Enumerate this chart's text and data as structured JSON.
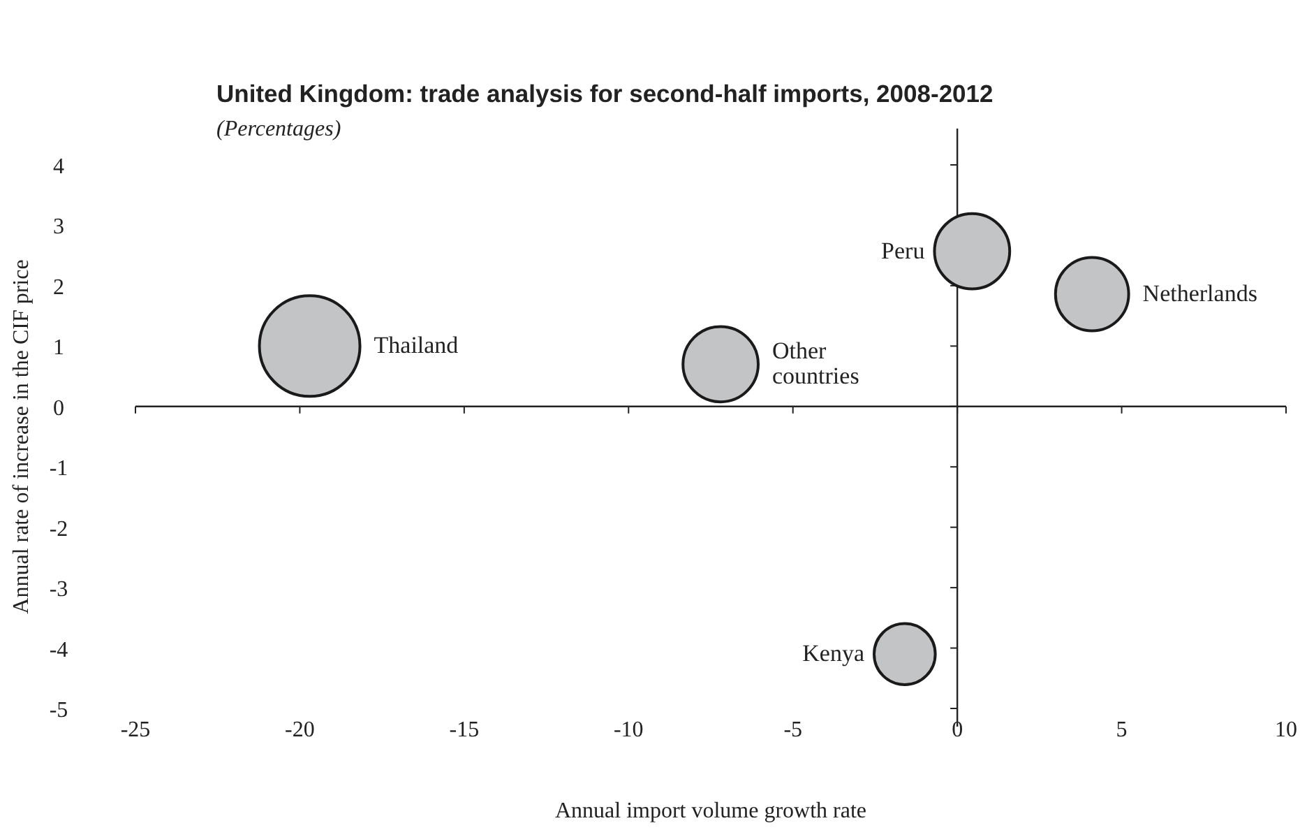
{
  "chart_data": {
    "type": "bubble",
    "title": "United Kingdom: trade analysis for second-half imports, 2008-2012",
    "subtitle": "(Percentages)",
    "xlabel": "Annual import volume growth rate",
    "ylabel": "Annual rate of increase in the CIF price",
    "xlim": [
      -25,
      10
    ],
    "xticks": [
      -25,
      -20,
      -15,
      -10,
      -5,
      0,
      5,
      10
    ],
    "ylim": [
      -5,
      4
    ],
    "yticks": [
      -5,
      -4,
      -3,
      -2,
      -1,
      0,
      1,
      2,
      3,
      4
    ],
    "series": [
      {
        "name": "Thailand",
        "color": "#c3c4c6",
        "x": [
          -19.7
        ],
        "values": [
          1.0
        ],
        "sizes": [
          1
        ]
      },
      {
        "name": "Other countries",
        "color": "#c3c4c6",
        "x": [
          -7.2
        ],
        "values": [
          0.7
        ],
        "sizes": [
          0.56
        ]
      },
      {
        "name": "Peru",
        "color": "#c3c4c6",
        "x": [
          0.45
        ],
        "values": [
          2.57
        ],
        "sizes": [
          0.56
        ]
      },
      {
        "name": "Netherlands",
        "color": "#c3c4c6",
        "x": [
          4.1
        ],
        "values": [
          1.86
        ],
        "sizes": [
          0.53
        ]
      },
      {
        "name": "Kenya",
        "color": "#c3c4c6",
        "x": [
          -1.6
        ],
        "values": [
          -4.1
        ],
        "sizes": [
          0.37
        ]
      }
    ]
  }
}
